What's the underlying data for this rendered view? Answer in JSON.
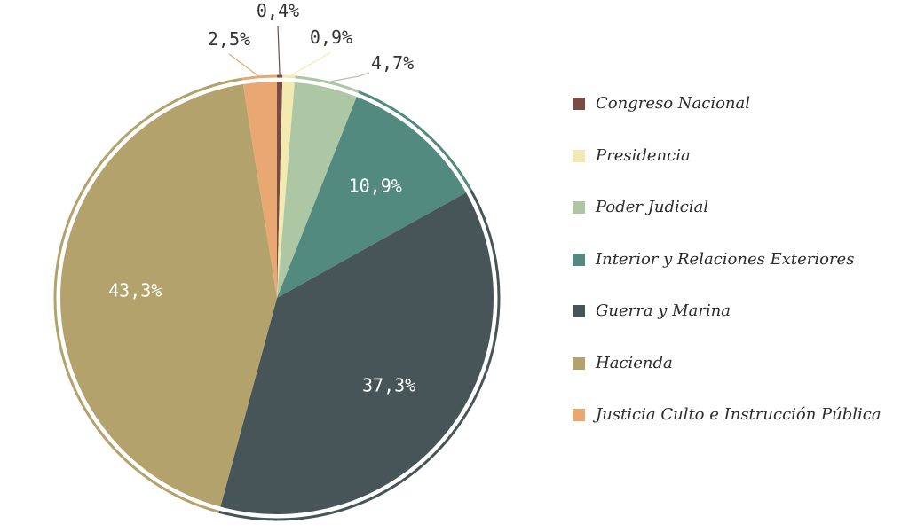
{
  "chart_data": {
    "type": "pie",
    "title": "",
    "slices": [
      {
        "name": "Congreso Nacional",
        "value": 0.4,
        "label": "0,4%",
        "color": "#7a4a44"
      },
      {
        "name": "Presidencia",
        "value": 0.9,
        "label": "0,9%",
        "color": "#f2eab0"
      },
      {
        "name": "Poder Judicial",
        "value": 4.7,
        "label": "4,7%",
        "color": "#adc7a5"
      },
      {
        "name": "Interior y Relaciones Exteriores",
        "value": 10.9,
        "label": "10,9%",
        "color": "#538a80"
      },
      {
        "name": "Guerra y Marina",
        "value": 37.3,
        "label": "37,3%",
        "color": "#475558"
      },
      {
        "name": "Hacienda",
        "value": 43.3,
        "label": "43,3%",
        "color": "#b3a26b"
      },
      {
        "name": "Justicia Culto e Instrucción Pública",
        "value": 2.5,
        "label": "2,5%",
        "color": "#e9a872"
      }
    ],
    "legend_position": "right"
  }
}
